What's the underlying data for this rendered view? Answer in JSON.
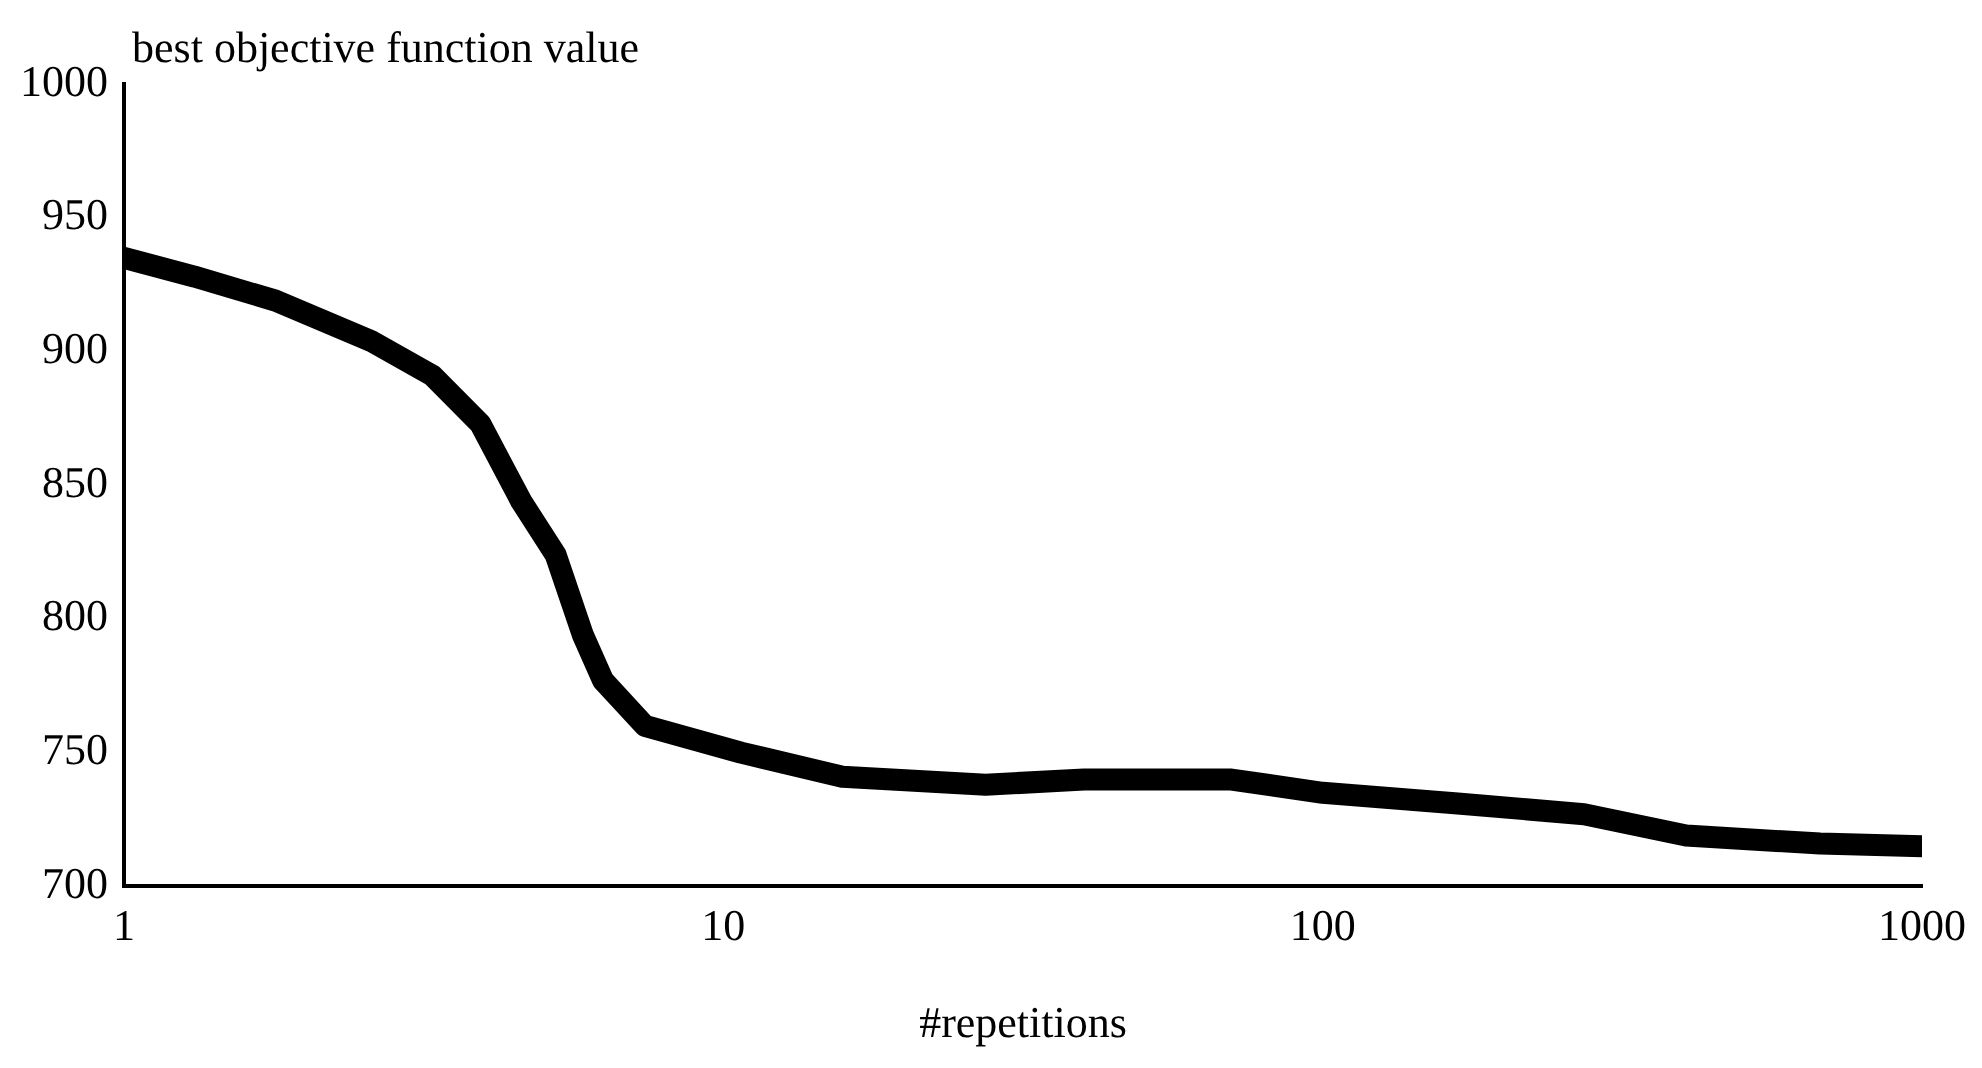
{
  "chart_data": {
    "type": "line",
    "xlabel": "#repetitions",
    "ylabel": "best objective function value",
    "log": "x",
    "xlim": [
      1,
      1000
    ],
    "xticks": [
      1,
      10,
      100,
      1000
    ],
    "ylim": [
      700,
      1000
    ],
    "yticks": [
      700,
      750,
      800,
      850,
      900,
      950,
      1000
    ],
    "grid": false,
    "legend": false,
    "marker": "none",
    "line_style": "solid",
    "series": [
      {
        "color": "#000000",
        "x": [
          1,
          1.31,
          1.79,
          2.58,
          3.27,
          3.93,
          4.6,
          5.25,
          5.83,
          6.3,
          7.4,
          10.7,
          15.8,
          27.4,
          40,
          70,
          100,
          168,
          273,
          404,
          676,
          1000
        ],
        "values": [
          935,
          928,
          919,
          904,
          891,
          873,
          844,
          824,
          794,
          777,
          760,
          750,
          741,
          738,
          740,
          740,
          735,
          731,
          727,
          719,
          716,
          715
        ]
      }
    ]
  }
}
